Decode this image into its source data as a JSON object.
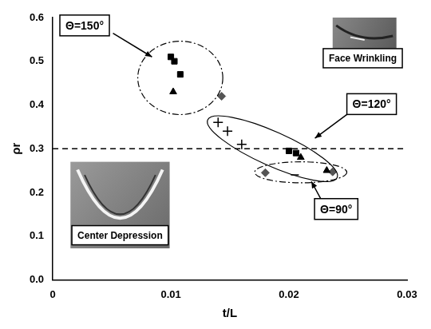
{
  "chart_data": {
    "type": "scatter",
    "x_label": "t/L",
    "y_label": "ρr",
    "xlim": [
      0,
      0.03
    ],
    "xticks": [
      0,
      0.01,
      0.02,
      0.03
    ],
    "ylim": [
      0,
      0.6
    ],
    "yticks": [
      {
        "value": 0,
        "label": "0.0"
      },
      {
        "value": 0.1,
        "label": "0.1"
      },
      {
        "value": 0.2,
        "label": "0.2"
      },
      {
        "value": 0.3,
        "label": "0.3"
      },
      {
        "value": 0.4,
        "label": "0.4"
      },
      {
        "value": 0.5,
        "label": "0.5"
      },
      {
        "value": 0.6,
        "label": "0.6"
      }
    ],
    "grid": false,
    "series": [
      {
        "marker": "square",
        "color": "#000000",
        "x": [
          0.01,
          0.0103,
          0.0108,
          0.02,
          0.0206
        ],
        "values": [
          0.51,
          0.5,
          0.47,
          0.295,
          0.29
        ]
      },
      {
        "marker": "triangle",
        "color": "#000000",
        "x": [
          0.0102,
          0.021,
          0.0232
        ],
        "values": [
          0.43,
          0.28,
          0.25
        ]
      },
      {
        "marker": "plus",
        "color": "#000000",
        "x": [
          0.014,
          0.0148,
          0.016
        ],
        "values": [
          0.36,
          0.34,
          0.31
        ]
      },
      {
        "marker": "diamond",
        "color": "#555555",
        "x": [
          0.0143,
          0.018,
          0.0237
        ],
        "values": [
          0.42,
          0.245,
          0.247
        ]
      },
      {
        "marker": "dash",
        "color": "#000000",
        "x": [
          0.0205
        ],
        "values": [
          0.24
        ]
      },
      {
        "type": "line",
        "line_style": "dashed",
        "color": "#000000",
        "x": [
          0,
          0.03
        ],
        "values": [
          0.3,
          0.3
        ]
      }
    ],
    "annotations": [
      "Θ=150°",
      "Θ=120°",
      "Θ=90°",
      "Face Wrinkling",
      "Center Depression"
    ]
  }
}
